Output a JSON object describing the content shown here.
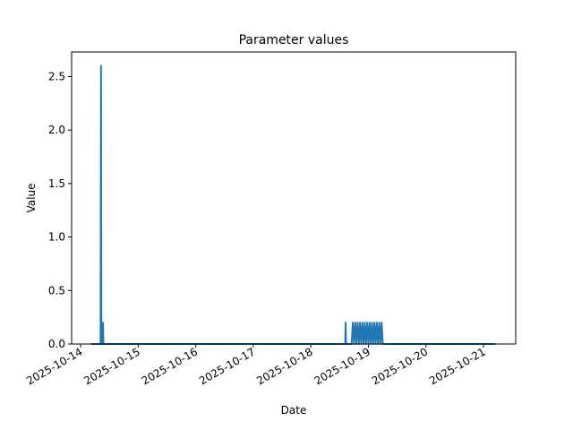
{
  "chart_data": {
    "type": "line",
    "title": "Parameter values",
    "xlabel": "Date",
    "ylabel": "Value",
    "color": "#1f77b4",
    "x": [
      "2025-10-14 04:30",
      "2025-10-14 08:20",
      "2025-10-14 08:30",
      "2025-10-14 08:40",
      "2025-10-14 09:10",
      "2025-10-14 09:20",
      "2025-10-14 09:30",
      "2025-10-18 14:20",
      "2025-10-18 14:30",
      "2025-10-18 14:40",
      "2025-10-18 17:00",
      "2025-10-18 17:30",
      "2025-10-18 18:00",
      "2025-10-18 18:30",
      "2025-10-18 19:00",
      "2025-10-18 19:30",
      "2025-10-18 20:00",
      "2025-10-18 20:30",
      "2025-10-18 21:00",
      "2025-10-18 21:30",
      "2025-10-18 22:00",
      "2025-10-18 22:30",
      "2025-10-18 23:00",
      "2025-10-18 23:30",
      "2025-10-19 00:00",
      "2025-10-19 00:30",
      "2025-10-19 01:00",
      "2025-10-19 01:30",
      "2025-10-19 02:00",
      "2025-10-19 02:30",
      "2025-10-19 03:00",
      "2025-10-19 03:30",
      "2025-10-19 04:00",
      "2025-10-19 04:30",
      "2025-10-19 05:00",
      "2025-10-19 05:30",
      "2025-10-19 06:00",
      "2025-10-21 05:00"
    ],
    "values": [
      0,
      0,
      2.6,
      0,
      0,
      0.2,
      0,
      0,
      0.2,
      0,
      0,
      0.2,
      0,
      0.2,
      0,
      0.2,
      0,
      0.2,
      0,
      0.2,
      0,
      0.2,
      0,
      0.2,
      0,
      0.2,
      0,
      0.2,
      0,
      0.2,
      0,
      0.2,
      0,
      0.2,
      0,
      0.2,
      0,
      0
    ],
    "xlim": [
      "2025-10-13 20:15",
      "2025-10-21 13:25"
    ],
    "xticks": [
      "2025-10-14",
      "2025-10-15",
      "2025-10-16",
      "2025-10-17",
      "2025-10-18",
      "2025-10-19",
      "2025-10-20",
      "2025-10-21"
    ],
    "ylim": [
      0,
      2.73
    ],
    "yticks": [
      {
        "value": 0,
        "label": "0.0"
      },
      {
        "value": 0.5,
        "label": "0.5"
      },
      {
        "value": 1,
        "label": "1.0"
      },
      {
        "value": 1.5,
        "label": "1.5"
      },
      {
        "value": 2,
        "label": "2.0"
      },
      {
        "value": 2.5,
        "label": "2.5"
      }
    ]
  }
}
